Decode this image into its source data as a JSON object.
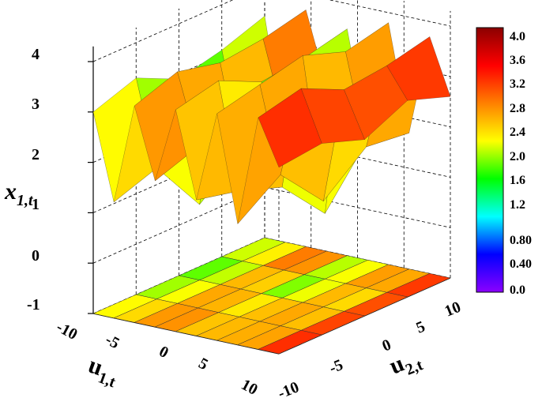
{
  "chart_data": {
    "type": "surface3d",
    "x_label": "u",
    "x_label_sub": "1,t",
    "y_label": "u",
    "y_label_sub": "2,t",
    "z_label": "x",
    "z_label_sub": "1,t",
    "x_ticks": [
      "-10",
      "-5",
      "0",
      "5",
      "10"
    ],
    "y_ticks": [
      "10",
      "5",
      "0",
      "-5",
      "-10"
    ],
    "z_ticks": [
      "4",
      "3",
      "2",
      "1",
      "0",
      "-1"
    ],
    "colorbar_ticks": [
      "4.0",
      "3.6",
      "3.2",
      "2.8",
      "2.4",
      "2.0",
      "1.6",
      "1.2",
      "0.80",
      "0.40",
      "0.0"
    ],
    "xlim": [
      -10,
      10
    ],
    "ylim": [
      -10,
      10
    ],
    "zlim": [
      -1,
      4
    ],
    "clim": [
      0,
      4
    ],
    "colormap": [
      "#8b00ff",
      "#0000ff",
      "#00ffff",
      "#00ff00",
      "#ffff00",
      "#ff8000",
      "#ff0000",
      "#8b0000"
    ],
    "grid": true,
    "contour_projection": "floor",
    "surface_rows": [
      [
        3.4,
        1.0,
        3.7,
        2.3,
        3.5,
        1.4,
        3.8,
        1.7,
        3.7,
        2.6
      ],
      [
        3.1,
        1.2,
        3.5,
        2.0,
        3.3,
        0.3,
        3.6,
        1.8,
        3.5,
        2.9
      ],
      [
        2.9,
        0.5,
        3.4,
        1.5,
        3.2,
        1.2,
        3.9,
        1.1,
        3.4,
        2.5
      ],
      [
        3.3,
        1.6,
        3.6,
        2.2,
        3.6,
        1.5,
        3.7,
        2.0,
        3.8,
        2.8
      ],
      [
        3.0,
        1.3,
        3.3,
        1.9,
        3.4,
        1.7,
        3.5,
        1.4,
        3.6,
        2.7
      ]
    ]
  }
}
